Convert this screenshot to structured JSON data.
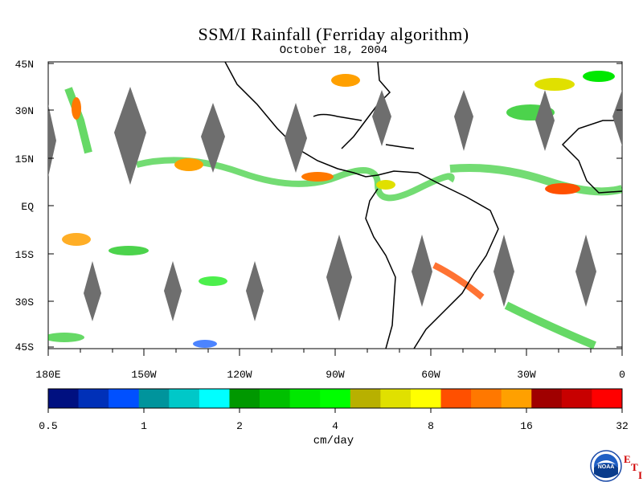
{
  "title": "SSM/I Rainfall (Ferriday algorithm)",
  "date": "October 18, 2004",
  "lat_labels": [
    "45N",
    "30N",
    "15N",
    "EQ",
    "15S",
    "30S",
    "45S"
  ],
  "lon_labels": [
    "180E",
    "150W",
    "120W",
    "90W",
    "60W",
    "30W",
    "0"
  ],
  "colorbar": {
    "unit": "cm/day",
    "tick_labels": [
      "0.5",
      "1",
      "2",
      "4",
      "8",
      "16",
      "32"
    ],
    "colors": [
      "#001080",
      "#0030b8",
      "#0050ff",
      "#00949c",
      "#00c8c8",
      "#00ffff",
      "#009800",
      "#00c000",
      "#00e800",
      "#00ff00",
      "#b8b000",
      "#e0e000",
      "#ffff00",
      "#ff5000",
      "#ff7800",
      "#ffa000",
      "#a00000",
      "#c80000",
      "#ff0000"
    ]
  },
  "logo": {
    "name": "NOAA",
    "corner_letters": [
      "E",
      "T",
      "I"
    ]
  }
}
